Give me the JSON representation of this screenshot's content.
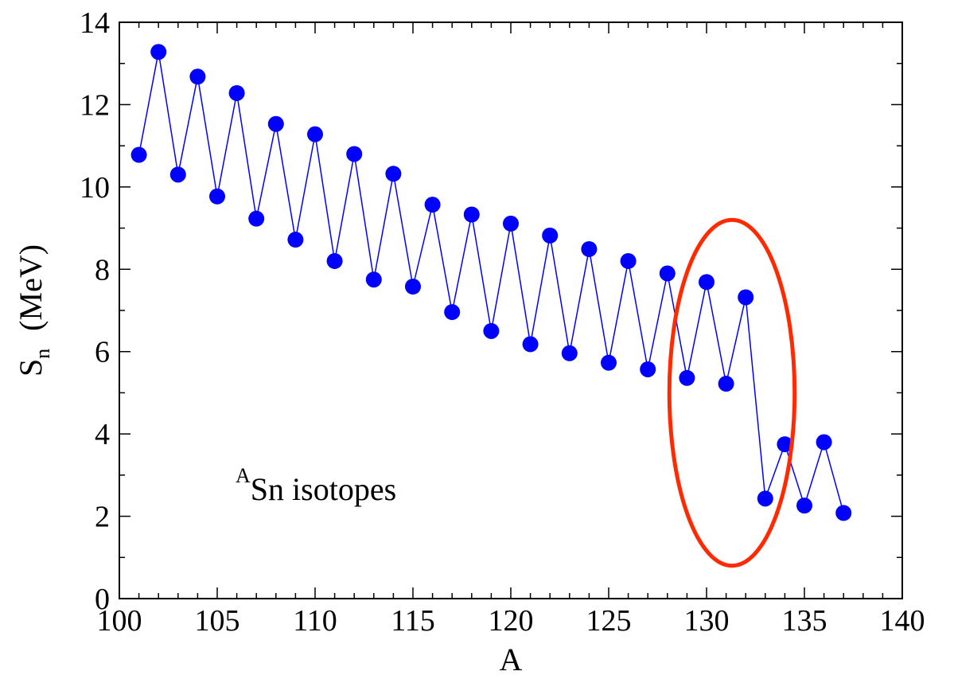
{
  "chart_data": {
    "type": "line",
    "xlabel": "A",
    "ylabel_main": "S",
    "ylabel_sub": "n",
    "ylabel_unit": "(MeV)",
    "xlim": [
      100,
      140
    ],
    "ylim": [
      0,
      14
    ],
    "xticks": [
      "100",
      "105",
      "110",
      "115",
      "120",
      "125",
      "130",
      "135",
      "140"
    ],
    "yticks": [
      "0",
      "2",
      "4",
      "6",
      "8",
      "10",
      "12",
      "14"
    ],
    "grid": false,
    "annotation": {
      "superscript": "A",
      "text": "Sn isotopes"
    },
    "highlight_ellipse": {
      "color": "#ff2a00",
      "center_x": 131.3,
      "center_y": 5.0,
      "radius_x": 3.2,
      "radius_y": 4.2
    },
    "series": [
      {
        "color": "#0000ff",
        "x": [
          101,
          102,
          103,
          104,
          105,
          106,
          107,
          108,
          109,
          110,
          111,
          112,
          113,
          114,
          115,
          116,
          117,
          118,
          119,
          120,
          121,
          122,
          123,
          124,
          125,
          126,
          127,
          128,
          129,
          130,
          131,
          132,
          133,
          134,
          135,
          136,
          137
        ],
        "y": [
          10.78,
          13.28,
          10.3,
          12.68,
          9.77,
          12.28,
          9.23,
          11.53,
          8.72,
          11.28,
          8.2,
          10.8,
          7.75,
          10.32,
          7.58,
          9.57,
          6.96,
          9.33,
          6.5,
          9.11,
          6.18,
          8.82,
          5.96,
          8.49,
          5.73,
          8.2,
          5.57,
          7.9,
          5.36,
          7.69,
          5.22,
          7.32,
          2.43,
          3.75,
          2.26,
          3.8,
          2.08
        ]
      }
    ]
  }
}
